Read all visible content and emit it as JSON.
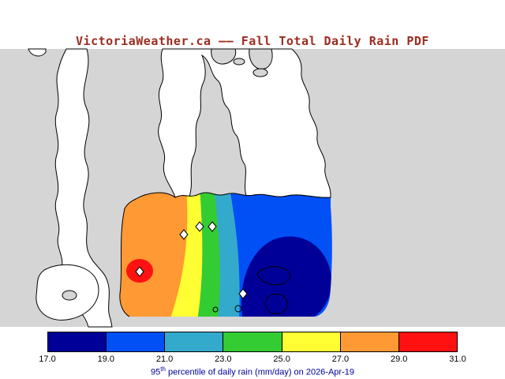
{
  "title": "VictoriaWeather.ca –– Fall Total Daily Rain PDF",
  "colors": {
    "title": "#9b2d20",
    "caption": "#000099",
    "land": "#d5d5d5",
    "water": "#ffffff",
    "coastline": "#000000"
  },
  "map": {
    "land_color": "#d5d5d5",
    "water_color": "#ffffff",
    "station_marker": "open-diamond",
    "stations_marked": 5
  },
  "colorbar": {
    "tick_labels": [
      "17.0",
      "19.0",
      "21.0",
      "23.0",
      "25.0",
      "27.0",
      "29.0",
      "31.0"
    ],
    "segment_colors": [
      "#000099",
      "#0050f5",
      "#33aacc",
      "#33cc33",
      "#ffff33",
      "#ff9933",
      "#ff1111"
    ],
    "caption": {
      "num": "95",
      "sup": "th",
      "rest": " percentile of daily rain (mm/day) on 2026-Apr-19"
    }
  },
  "chart_data": {
    "type": "heatmap",
    "title": "VictoriaWeather.ca –– Fall Total Daily Rain PDF",
    "caption": "95th percentile of daily rain (mm/day) on 2026-Apr-19",
    "variable": "95th percentile of daily rain",
    "units": "mm/day",
    "date": "2026-Apr-19",
    "levels": [
      17.0,
      19.0,
      21.0,
      23.0,
      25.0,
      27.0,
      29.0,
      31.0
    ],
    "level_colors": [
      "#000099",
      "#0050f5",
      "#33aacc",
      "#33cc33",
      "#ffff33",
      "#ff9933",
      "#ff1111"
    ],
    "spatial_pattern": "filled contours over southern Vancouver Island: maximum (about 29-31 mm/day, red/orange) at the west edge of the data region, decreasing eastward through yellow, green and cyan bands to a dark navy minimum (17-19 mm/day) in the southeast",
    "legend_position": "bottom",
    "station_markers": 5
  }
}
